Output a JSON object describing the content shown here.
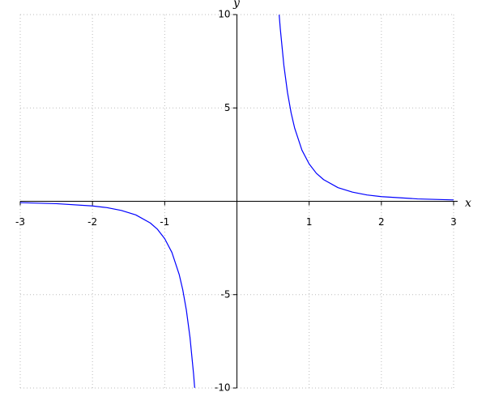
{
  "chart_data": {
    "type": "line",
    "x": [
      -3,
      -2.5,
      -2,
      -1.8,
      -1.6,
      -1.4,
      -1.2,
      -1.1,
      -1,
      -0.9,
      -0.8,
      -0.75,
      -0.7,
      -0.65,
      -0.6,
      -0.585,
      0,
      0.585,
      0.6,
      0.65,
      0.7,
      0.75,
      0.8,
      0.9,
      1,
      1.1,
      1.2,
      1.4,
      1.6,
      1.8,
      2,
      2.5,
      3
    ],
    "values": [
      -0.074,
      -0.128,
      -0.25,
      -0.34,
      -0.49,
      -0.73,
      -1.16,
      -1.5,
      -2,
      -2.74,
      -3.91,
      -4.74,
      -5.83,
      -7.28,
      -9.26,
      -9.99,
      null,
      9.99,
      9.26,
      7.28,
      5.83,
      4.74,
      3.91,
      2.74,
      2,
      1.5,
      1.16,
      0.73,
      0.49,
      0.34,
      0.25,
      0.128,
      0.074
    ],
    "color": "#0000ff",
    "x_label": "x",
    "y_label": "y",
    "xlim": [
      -3,
      3
    ],
    "ylim": [
      -10,
      10
    ],
    "xticks": [
      -3,
      -2,
      -1,
      1,
      2,
      3
    ],
    "yticks": [
      -10,
      -5,
      5,
      10
    ],
    "grid": true
  }
}
